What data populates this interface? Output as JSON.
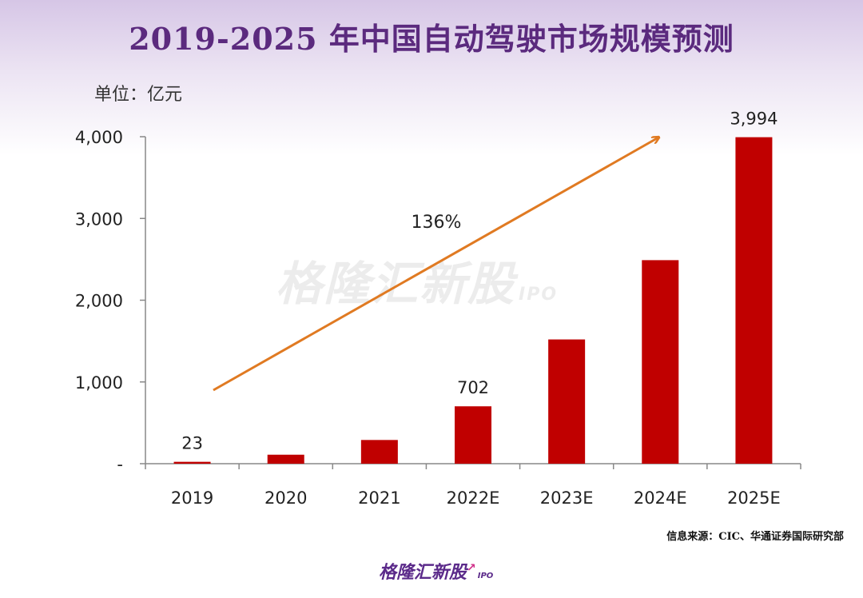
{
  "title": "2019-2025 年中国自动驾驶市场规模预测",
  "unit_label": "单位：亿元",
  "source": "信息来源：CIC、华通证券国际研究部",
  "watermark": "格隆汇新股",
  "watermark_sub": "IPO",
  "logo": "格隆汇新股",
  "logo_sub": "IPO",
  "colors": {
    "bar": "#c00000",
    "arrow": "#e07a22",
    "title": "#5b2a7e"
  },
  "chart_data": {
    "type": "bar",
    "categories": [
      "2019",
      "2020",
      "2021",
      "2022E",
      "2023E",
      "2024E",
      "2025E"
    ],
    "values": [
      23,
      110,
      290,
      702,
      1520,
      2490,
      3994
    ],
    "data_labels": [
      "23",
      "",
      "",
      "702",
      "",
      "",
      "3,994"
    ],
    "ylim": [
      0,
      4000
    ],
    "yticks": [
      0,
      1000,
      2000,
      3000,
      4000
    ],
    "ytick_labels": [
      "-",
      "1,000",
      "2,000",
      "3,000",
      "4,000"
    ],
    "annotation": "136%",
    "grid": false,
    "legend": "none"
  }
}
